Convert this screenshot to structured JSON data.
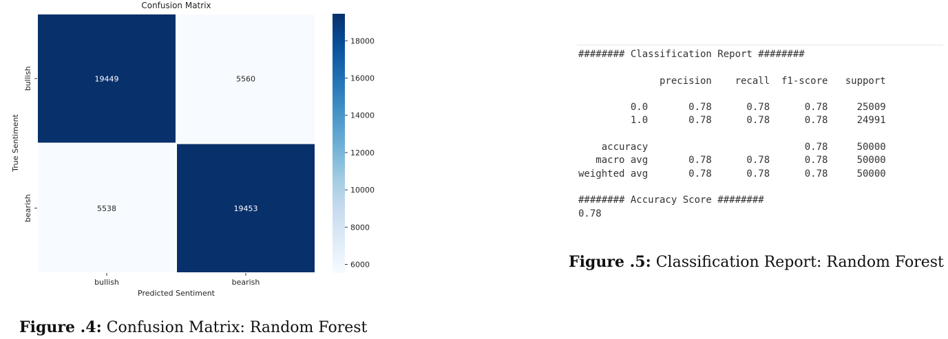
{
  "confusion_figure": {
    "caption_label": "Figure .4:",
    "caption_text": "Confusion Matrix: Random Forest"
  },
  "chart_data": {
    "type": "heatmap",
    "title": "Confusion Matrix",
    "xlabel": "Predicted Sentiment",
    "ylabel": "True Sentiment",
    "x_categories": [
      "bullish",
      "bearish"
    ],
    "y_categories": [
      "bullish",
      "bearish"
    ],
    "values": [
      [
        19449,
        5560
      ],
      [
        5538,
        19453
      ]
    ],
    "colormap": "Blues",
    "color_range": [
      5538,
      19453
    ],
    "colorbar_ticks": [
      6000,
      8000,
      10000,
      12000,
      14000,
      16000,
      18000
    ],
    "colors": {
      "low": "#f7fbff",
      "high": "#08306b",
      "grid": "#ffffff"
    }
  },
  "report": {
    "lines": [
      "######## Classification Report ########",
      "",
      "              precision    recall  f1-score   support",
      "",
      "         0.0       0.78      0.78      0.78     25009",
      "         1.0       0.78      0.78      0.78     24991",
      "",
      "    accuracy                           0.78     50000",
      "   macro avg       0.78      0.78      0.78     50000",
      "weighted avg       0.78      0.78      0.78     50000",
      "",
      "######## Accuracy Score ########",
      "0.78"
    ],
    "caption_label": "Figure .5:",
    "caption_text": "Classification Report: Random Forest"
  }
}
